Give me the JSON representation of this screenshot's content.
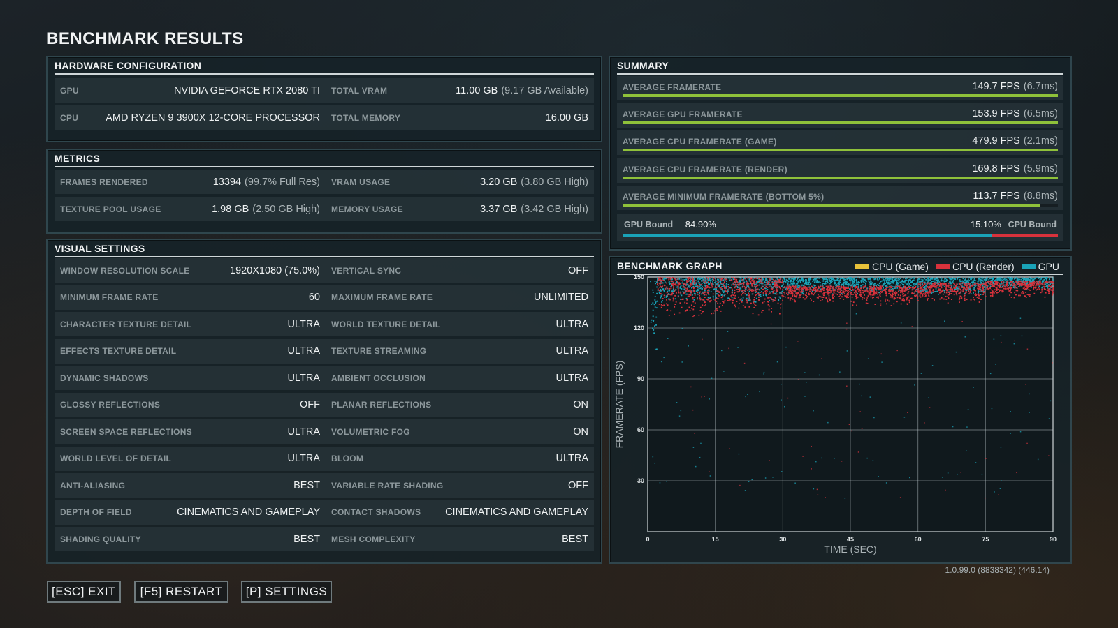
{
  "title": "BENCHMARK RESULTS",
  "hardware": {
    "header": "HARDWARE CONFIGURATION",
    "rows": [
      {
        "l1": "GPU",
        "v1": "NVIDIA GEFORCE RTX 2080 TI",
        "s1": "",
        "l2": "TOTAL VRAM",
        "v2": "11.00 GB",
        "s2": "(9.17 GB Available)"
      },
      {
        "l1": "CPU",
        "v1": "AMD RYZEN 9 3900X 12-CORE PROCESSOR",
        "s1": "",
        "l2": "TOTAL MEMORY",
        "v2": "16.00 GB",
        "s2": ""
      }
    ]
  },
  "metrics": {
    "header": "METRICS",
    "rows": [
      {
        "l1": "FRAMES RENDERED",
        "v1": "13394",
        "s1": "(99.7% Full Res)",
        "l2": "VRAM USAGE",
        "v2": "3.20 GB",
        "s2": "(3.80 GB High)"
      },
      {
        "l1": "TEXTURE POOL USAGE",
        "v1": "1.98 GB",
        "s1": "(2.50 GB High)",
        "l2": "MEMORY USAGE",
        "v2": "3.37 GB",
        "s2": "(3.42 GB High)"
      }
    ]
  },
  "visual": {
    "header": "VISUAL SETTINGS",
    "rows": [
      {
        "l1": "WINDOW RESOLUTION SCALE",
        "v1": "1920X1080 (75.0%)",
        "l2": "VERTICAL SYNC",
        "v2": "OFF"
      },
      {
        "l1": "MINIMUM FRAME RATE",
        "v1": "60",
        "l2": "MAXIMUM FRAME RATE",
        "v2": "UNLIMITED"
      },
      {
        "l1": "CHARACTER TEXTURE DETAIL",
        "v1": "ULTRA",
        "l2": "WORLD TEXTURE DETAIL",
        "v2": "ULTRA"
      },
      {
        "l1": "EFFECTS TEXTURE DETAIL",
        "v1": "ULTRA",
        "l2": "TEXTURE STREAMING",
        "v2": "ULTRA"
      },
      {
        "l1": "DYNAMIC SHADOWS",
        "v1": "ULTRA",
        "l2": "AMBIENT OCCLUSION",
        "v2": "ULTRA"
      },
      {
        "l1": "GLOSSY REFLECTIONS",
        "v1": "OFF",
        "l2": "PLANAR REFLECTIONS",
        "v2": "ON"
      },
      {
        "l1": "SCREEN SPACE REFLECTIONS",
        "v1": "ULTRA",
        "l2": "VOLUMETRIC FOG",
        "v2": "ON"
      },
      {
        "l1": "WORLD LEVEL OF DETAIL",
        "v1": "ULTRA",
        "l2": "BLOOM",
        "v2": "ULTRA"
      },
      {
        "l1": "ANTI-ALIASING",
        "v1": "BEST",
        "l2": "VARIABLE RATE SHADING",
        "v2": "OFF"
      },
      {
        "l1": "DEPTH OF FIELD",
        "v1": "CINEMATICS AND GAMEPLAY",
        "l2": "CONTACT SHADOWS",
        "v2": "CINEMATICS AND GAMEPLAY"
      },
      {
        "l1": "SHADING QUALITY",
        "v1": "BEST",
        "l2": "MESH COMPLEXITY",
        "v2": "BEST"
      }
    ]
  },
  "summary": {
    "header": "SUMMARY",
    "rows": [
      {
        "label": "AVERAGE FRAMERATE",
        "value": "149.7 FPS",
        "sub": "(6.7ms)",
        "fill": 1.0
      },
      {
        "label": "AVERAGE GPU FRAMERATE",
        "value": "153.9 FPS",
        "sub": "(6.5ms)",
        "fill": 1.0
      },
      {
        "label": "AVERAGE CPU FRAMERATE (GAME)",
        "value": "479.9 FPS",
        "sub": "(2.1ms)",
        "fill": 1.0
      },
      {
        "label": "AVERAGE CPU FRAMERATE (RENDER)",
        "value": "169.8 FPS",
        "sub": "(5.9ms)",
        "fill": 1.0
      },
      {
        "label": "AVERAGE MINIMUM FRAMERATE (BOTTOM 5%)",
        "value": "113.7 FPS",
        "sub": "(8.8ms)",
        "fill": 0.96
      }
    ],
    "bound": {
      "gpu_label": "GPU Bound",
      "gpu_value": "84.90%",
      "cpu_label": "CPU Bound",
      "cpu_value": "15.10%",
      "gpu_fraction": 0.849,
      "gpu_color": "#1aa3b8",
      "cpu_color": "#d8323c"
    },
    "bar_color": "#8fc13a"
  },
  "graph": {
    "header": "BENCHMARK GRAPH",
    "legend": [
      {
        "name": "CPU (Game)",
        "color": "#e8c23a"
      },
      {
        "name": "CPU (Render)",
        "color": "#d8323c"
      },
      {
        "name": "GPU",
        "color": "#1aa3b8"
      }
    ]
  },
  "chart_data": {
    "type": "scatter",
    "xlabel": "TIME (SEC)",
    "ylabel": "FRAMERATE (FPS)",
    "xlim": [
      0,
      90
    ],
    "ylim": [
      0,
      150
    ],
    "xticks": [
      "0",
      "15",
      "30",
      "45",
      "60",
      "75",
      "90"
    ],
    "yticks": [
      "30",
      "60",
      "90",
      "120",
      "150"
    ],
    "grid": true,
    "legend_position": "top-right",
    "series": [
      {
        "name": "GPU",
        "color": "#1aa3b8",
        "bands": [
          [
            0.5,
            2,
            95,
            150
          ],
          [
            2,
            15,
            135,
            150
          ],
          [
            15,
            30,
            135,
            150
          ],
          [
            30,
            45,
            140,
            150
          ],
          [
            45,
            60,
            140,
            150
          ],
          [
            60,
            75,
            140,
            150
          ],
          [
            75,
            90,
            143,
            150
          ]
        ]
      },
      {
        "name": "CPU (Render)",
        "color": "#d8323c",
        "bands": [
          [
            2,
            15,
            125,
            150
          ],
          [
            15,
            30,
            128,
            150
          ],
          [
            30,
            45,
            135,
            145
          ],
          [
            45,
            60,
            133,
            145
          ],
          [
            60,
            75,
            135,
            147
          ],
          [
            75,
            90,
            138,
            148
          ]
        ]
      },
      {
        "name": "CPU (Game)",
        "color": "#e8c23a",
        "bands": []
      }
    ]
  },
  "version": "1.0.99.0 (8838342) (446.14)",
  "buttons": {
    "exit": "[ESC] EXIT",
    "restart": "[F5] RESTART",
    "settings": "[P] SETTINGS"
  }
}
